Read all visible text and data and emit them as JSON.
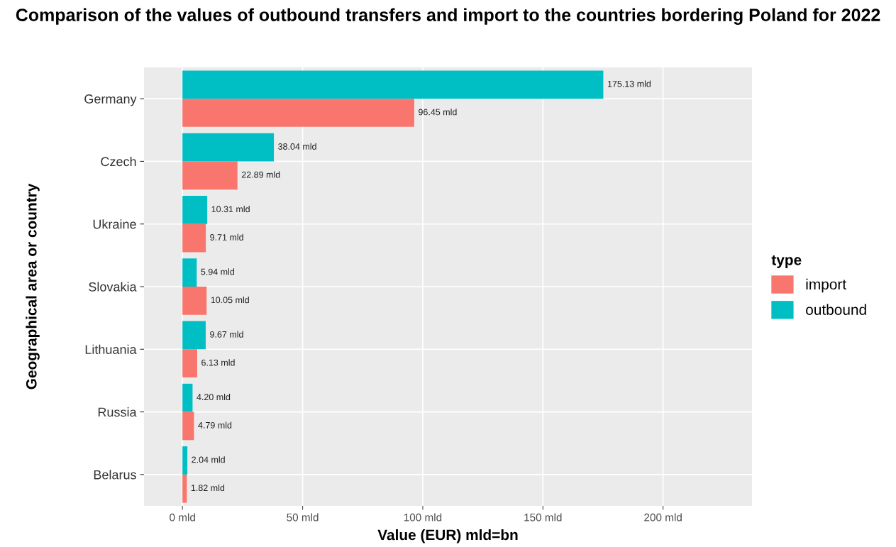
{
  "chart_data": {
    "type": "bar",
    "orientation": "horizontal",
    "title": "Comparison of the values of outbound transfers and import to the countries bordering Poland for 2022",
    "xlabel": "Value (EUR) mld=bn",
    "ylabel": "Geographical area or country",
    "legend_title": "type",
    "categories": [
      "Germany",
      "Czech",
      "Ukraine",
      "Slovakia",
      "Lithuania",
      "Russia",
      "Belarus"
    ],
    "series": [
      {
        "name": "import",
        "color": "#f8766d",
        "values": [
          96.45,
          22.89,
          9.71,
          10.05,
          6.13,
          4.79,
          1.82
        ],
        "value_labels": [
          "96.45 mld",
          "22.89 mld",
          "9.71 mld",
          "10.05 mld",
          "6.13 mld",
          "4.79 mld",
          "1.82 mld"
        ]
      },
      {
        "name": "outbound",
        "color": "#00bfc4",
        "values": [
          175.13,
          38.04,
          10.31,
          5.94,
          9.67,
          4.2,
          2.04
        ],
        "value_labels": [
          "175.13 mld",
          "38.04 mld",
          "10.31 mld",
          "5.94 mld",
          "9.67 mld",
          "4.20 mld",
          "2.04 mld"
        ]
      }
    ],
    "xlim": [
      -16,
      237
    ],
    "xticks": [
      {
        "value": 0,
        "label": "0 mld"
      },
      {
        "value": 50,
        "label": "50 mld"
      },
      {
        "value": 100,
        "label": "100 mld"
      },
      {
        "value": 150,
        "label": "150 mld"
      },
      {
        "value": 200,
        "label": "200 mld"
      }
    ],
    "grid": true,
    "legend": "right"
  }
}
